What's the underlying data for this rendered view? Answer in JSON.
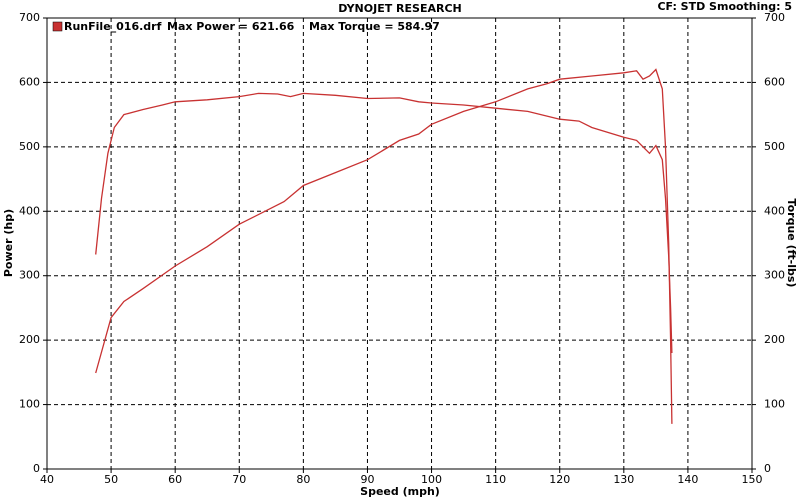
{
  "chart_data": {
    "type": "line",
    "title": "DYNOJET RESEARCH",
    "subtitle": "CF: STD  Smoothing: 5",
    "legend_label": "RunFile_016.drf",
    "annotations": [
      "Max Power = 621.66",
      "Max Torque = 584.97"
    ],
    "x_label": "Speed (mph)",
    "y_label": "Power (hp)",
    "y2_label": "Torque (ft-lbs)",
    "xlim": [
      40,
      150
    ],
    "xticks": [
      40,
      50,
      60,
      70,
      80,
      90,
      100,
      110,
      120,
      130,
      140,
      150
    ],
    "ylim": [
      0,
      700
    ],
    "yticks": [
      0,
      100,
      200,
      300,
      400,
      500,
      600,
      700
    ],
    "y2lim": [
      0,
      700
    ],
    "y2ticks": [
      0,
      100,
      200,
      300,
      400,
      500,
      600,
      700
    ],
    "grid": true,
    "series": [
      {
        "color": "#c83232",
        "x": [
          47.6,
          50,
          52,
          55,
          60,
          65,
          70,
          75,
          77,
          80,
          85,
          90,
          95,
          98,
          100,
          105,
          110,
          115,
          118,
          120,
          125,
          130,
          132,
          133,
          134,
          135,
          136,
          136.5,
          137,
          137.3,
          137.5
        ],
        "values": [
          149,
          235,
          260,
          280,
          315,
          345,
          380,
          405,
          415,
          440,
          460,
          480,
          510,
          520,
          535,
          555,
          570,
          590,
          598,
          605,
          610,
          615,
          618,
          605,
          610,
          620,
          590,
          500,
          350,
          200,
          70
        ]
      },
      {
        "color": "#c83232",
        "axis": "y2",
        "x": [
          47.6,
          48.5,
          49.5,
          50.5,
          52,
          55,
          58,
          60,
          65,
          70,
          73,
          76,
          78,
          80,
          85,
          90,
          95,
          98,
          100,
          105,
          110,
          115,
          120,
          123,
          125,
          130,
          132,
          134,
          135,
          136,
          136.5,
          137,
          137.3,
          137.5
        ],
        "values": [
          333,
          420,
          490,
          530,
          550,
          558,
          565,
          570,
          573,
          578,
          583,
          582,
          578,
          583,
          580,
          575,
          576,
          570,
          568,
          565,
          560,
          555,
          543,
          540,
          530,
          515,
          510,
          490,
          502,
          480,
          420,
          330,
          250,
          180
        ]
      }
    ]
  }
}
